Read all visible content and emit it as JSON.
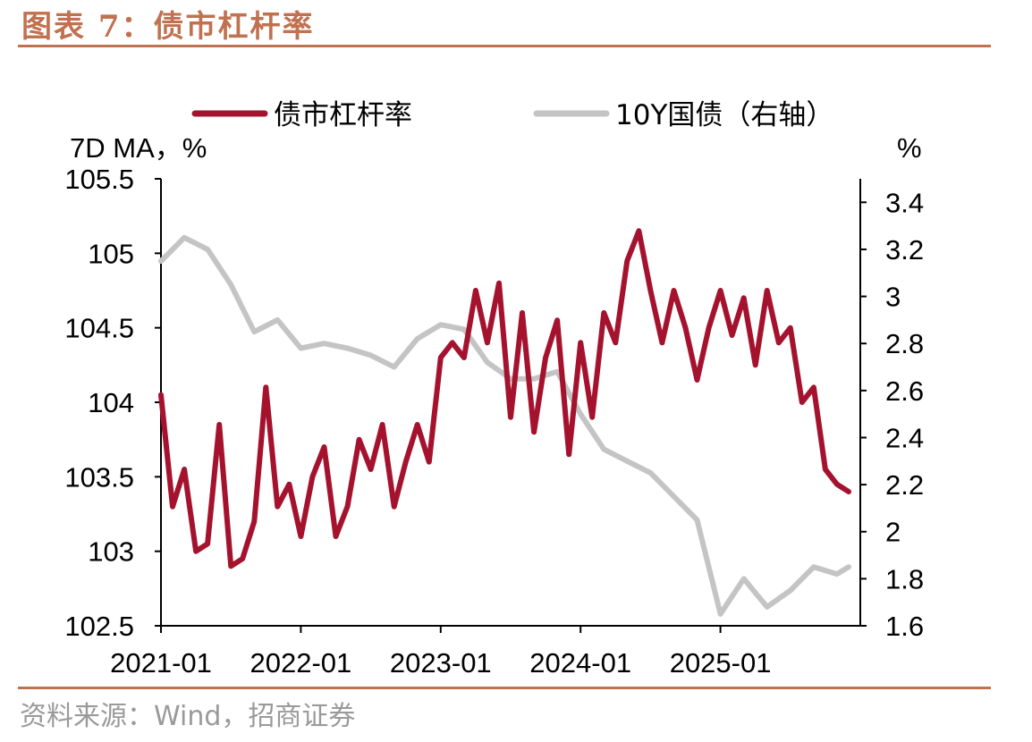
{
  "header": {
    "title": "图表 7：债市杠杆率"
  },
  "footer": {
    "source": "资料来源：Wind，招商证券"
  },
  "colors": {
    "accent": "#C0714F",
    "leverage": "#A5122E",
    "bond": "#C4C4C4"
  },
  "chart_data": {
    "type": "line",
    "left_axis_label": "7D MA，%",
    "right_axis_label": "%",
    "left_ylim": [
      102.5,
      105.5
    ],
    "right_ylim": [
      1.6,
      3.5
    ],
    "left_ticks": [
      "105.5",
      "105",
      "104.5",
      "104",
      "103.5",
      "103",
      "102.5"
    ],
    "right_ticks": [
      "3.4",
      "3.2",
      "3",
      "2.8",
      "2.6",
      "2.4",
      "2.2",
      "2",
      "1.8",
      "1.6"
    ],
    "x_ticks": [
      "2021-01",
      "2022-01",
      "2023-01",
      "2024-01",
      "2025-01"
    ],
    "x_range": [
      "2021-01",
      "2025-12"
    ],
    "legend_position": "top",
    "series": [
      {
        "name": "债市杠杆率",
        "axis": "left",
        "points": [
          [
            "2021-01",
            104.05
          ],
          [
            "2021-02",
            103.3
          ],
          [
            "2021-03",
            103.55
          ],
          [
            "2021-04",
            103.0
          ],
          [
            "2021-05",
            103.05
          ],
          [
            "2021-06",
            103.85
          ],
          [
            "2021-07",
            102.9
          ],
          [
            "2021-08",
            102.95
          ],
          [
            "2021-09",
            103.2
          ],
          [
            "2021-10",
            104.1
          ],
          [
            "2021-11",
            103.3
          ],
          [
            "2021-12",
            103.45
          ],
          [
            "2022-01",
            103.1
          ],
          [
            "2022-02",
            103.5
          ],
          [
            "2022-03",
            103.7
          ],
          [
            "2022-04",
            103.1
          ],
          [
            "2022-05",
            103.3
          ],
          [
            "2022-06",
            103.75
          ],
          [
            "2022-07",
            103.55
          ],
          [
            "2022-08",
            103.85
          ],
          [
            "2022-09",
            103.3
          ],
          [
            "2022-10",
            103.6
          ],
          [
            "2022-11",
            103.85
          ],
          [
            "2022-12",
            103.6
          ],
          [
            "2023-01",
            104.3
          ],
          [
            "2023-02",
            104.4
          ],
          [
            "2023-03",
            104.3
          ],
          [
            "2023-04",
            104.75
          ],
          [
            "2023-05",
            104.4
          ],
          [
            "2023-06",
            104.8
          ],
          [
            "2023-07",
            103.9
          ],
          [
            "2023-08",
            104.6
          ],
          [
            "2023-09",
            103.8
          ],
          [
            "2023-10",
            104.3
          ],
          [
            "2023-11",
            104.55
          ],
          [
            "2023-12",
            103.65
          ],
          [
            "2024-01",
            104.4
          ],
          [
            "2024-02",
            103.9
          ],
          [
            "2024-03",
            104.6
          ],
          [
            "2024-04",
            104.4
          ],
          [
            "2024-05",
            104.95
          ],
          [
            "2024-06",
            105.15
          ],
          [
            "2024-07",
            104.75
          ],
          [
            "2024-08",
            104.4
          ],
          [
            "2024-09",
            104.75
          ],
          [
            "2024-10",
            104.5
          ],
          [
            "2024-11",
            104.15
          ],
          [
            "2024-12",
            104.5
          ],
          [
            "2025-01",
            104.75
          ],
          [
            "2025-02",
            104.45
          ],
          [
            "2025-03",
            104.7
          ],
          [
            "2025-04",
            104.25
          ],
          [
            "2025-05",
            104.75
          ],
          [
            "2025-06",
            104.4
          ],
          [
            "2025-07",
            104.5
          ],
          [
            "2025-08",
            104.0
          ],
          [
            "2025-09",
            104.1
          ],
          [
            "2025-10",
            103.55
          ],
          [
            "2025-11",
            103.45
          ],
          [
            "2025-12",
            103.4
          ]
        ]
      },
      {
        "name": "10Y国债（右轴）",
        "axis": "right",
        "points": [
          [
            "2021-01",
            3.15
          ],
          [
            "2021-03",
            3.25
          ],
          [
            "2021-05",
            3.2
          ],
          [
            "2021-07",
            3.05
          ],
          [
            "2021-09",
            2.85
          ],
          [
            "2021-11",
            2.9
          ],
          [
            "2022-01",
            2.78
          ],
          [
            "2022-03",
            2.8
          ],
          [
            "2022-05",
            2.78
          ],
          [
            "2022-07",
            2.75
          ],
          [
            "2022-09",
            2.7
          ],
          [
            "2022-11",
            2.82
          ],
          [
            "2023-01",
            2.88
          ],
          [
            "2023-03",
            2.86
          ],
          [
            "2023-05",
            2.72
          ],
          [
            "2023-07",
            2.65
          ],
          [
            "2023-09",
            2.65
          ],
          [
            "2023-11",
            2.68
          ],
          [
            "2024-01",
            2.5
          ],
          [
            "2024-03",
            2.35
          ],
          [
            "2024-05",
            2.3
          ],
          [
            "2024-07",
            2.25
          ],
          [
            "2024-09",
            2.15
          ],
          [
            "2024-11",
            2.05
          ],
          [
            "2025-01",
            1.65
          ],
          [
            "2025-03",
            1.8
          ],
          [
            "2025-05",
            1.68
          ],
          [
            "2025-07",
            1.75
          ],
          [
            "2025-09",
            1.85
          ],
          [
            "2025-11",
            1.82
          ],
          [
            "2025-12",
            1.85
          ]
        ]
      }
    ]
  }
}
